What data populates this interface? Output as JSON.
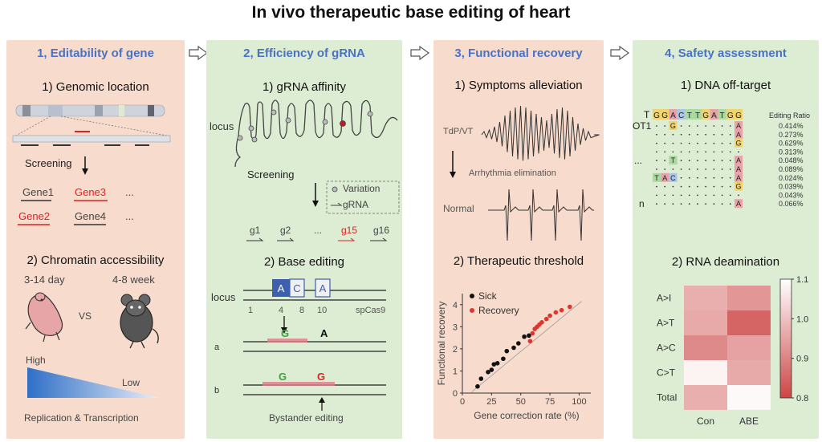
{
  "title": "In vivo therapeutic base editing of heart",
  "panel1": {
    "heading": "1, Editability of gene",
    "sub1": "1) Genomic location",
    "screening": "Screening",
    "genes": [
      "Gene1",
      "Gene3",
      "Gene2",
      "Gene4"
    ],
    "ellipsis": "...",
    "sub2": "2) Chromatin accessibility",
    "age_young": "3-14 day",
    "age_old": "4-8 week",
    "vs": "VS",
    "high": "High",
    "low": "Low",
    "gradient_label": "Replication & Transcription"
  },
  "panel2": {
    "heading": "2, Efficiency of gRNA",
    "sub1": "1) gRNA affinity",
    "locus": "locus",
    "screening": "Screening",
    "legend_variation": "Variation",
    "legend_grna": "gRNA",
    "guides": [
      "g1",
      "g2",
      "...",
      "g15",
      "g16"
    ],
    "sub2": "2) Base editing",
    "locus2": "locus",
    "bases": [
      "A",
      "C",
      "A"
    ],
    "positions": [
      "1",
      "4",
      "8",
      "10"
    ],
    "enzyme": "spCas9",
    "row_a": "a",
    "row_b": "b",
    "edit_a": [
      "G",
      "A"
    ],
    "edit_b": [
      "G",
      "G"
    ],
    "bystander": "Bystander editing"
  },
  "panel3": {
    "heading": "3, Functional recovery",
    "sub1": "1) Symptoms alleviation",
    "tdp": "TdP/VT",
    "arrhythmia": "Arrhythmia elimination",
    "normal": "Normal",
    "sub2": "2) Therapeutic threshold",
    "legend_sick": "Sick",
    "legend_recovery": "Recovery",
    "sick_color": "#111111",
    "recovery_color": "#e0352b"
  },
  "panel4": {
    "heading": "4, Safety assessment",
    "sub1": "1) DNA off-target",
    "seq_label": "T",
    "seq": [
      "G",
      "G",
      "A",
      "C",
      "T",
      "T",
      "G",
      "A",
      "T",
      "G",
      "G"
    ],
    "editing_ratio": "Editing Ratio",
    "ot1": "OT1",
    "dots_label": "...",
    "n_label": "n",
    "ratios": [
      "0.414%",
      "0.273%",
      "0.629%",
      "0.313%",
      "0.048%",
      "0.089%",
      "0.024%",
      "0.039%",
      "0.043%",
      "0.066%"
    ],
    "sub2": "2) RNA deamination",
    "heat_rows": [
      "A>I",
      "A>T",
      "A>C",
      "C>T",
      "Total"
    ],
    "heat_cols": [
      "Con",
      "ABE"
    ],
    "scale_ticks": [
      "1.1",
      "1.0",
      "0.9",
      "0.8"
    ]
  },
  "chart_data": {
    "type": "scatter",
    "xlabel": "Gene correction rate (%)",
    "ylabel": "Functional recovery",
    "xlim": [
      0,
      110
    ],
    "ylim": [
      0,
      4.5
    ],
    "xticks": [
      0,
      25,
      50,
      75,
      100
    ],
    "yticks": [
      0,
      1,
      2,
      3,
      4
    ],
    "series": [
      {
        "name": "Sick",
        "color": "#111111",
        "points": [
          [
            13,
            0.3
          ],
          [
            16,
            0.65
          ],
          [
            22,
            0.95
          ],
          [
            25,
            1.05
          ],
          [
            27,
            1.3
          ],
          [
            30,
            1.35
          ],
          [
            35,
            1.55
          ],
          [
            38,
            1.9
          ],
          [
            44,
            2.05
          ],
          [
            48,
            2.25
          ],
          [
            53,
            2.55
          ],
          [
            57,
            2.6
          ]
        ]
      },
      {
        "name": "Recovery",
        "color": "#e0352b",
        "points": [
          [
            58,
            2.35
          ],
          [
            60,
            2.7
          ],
          [
            62,
            2.9
          ],
          [
            64,
            3.0
          ],
          [
            66,
            3.1
          ],
          [
            68,
            3.2
          ],
          [
            72,
            3.35
          ],
          [
            75,
            3.5
          ],
          [
            80,
            3.65
          ],
          [
            85,
            3.75
          ],
          [
            92,
            3.9
          ]
        ]
      }
    ]
  },
  "heatmap_data": {
    "type": "heatmap",
    "rows": [
      "A>I",
      "A>T",
      "A>C",
      "C>T",
      "Total"
    ],
    "cols": [
      "Con",
      "ABE"
    ],
    "values": [
      [
        0.97,
        0.93
      ],
      [
        0.96,
        0.85
      ],
      [
        0.91,
        0.95
      ],
      [
        1.08,
        0.96
      ],
      [
        0.97,
        1.09
      ]
    ],
    "range": [
      0.8,
      1.1
    ]
  }
}
